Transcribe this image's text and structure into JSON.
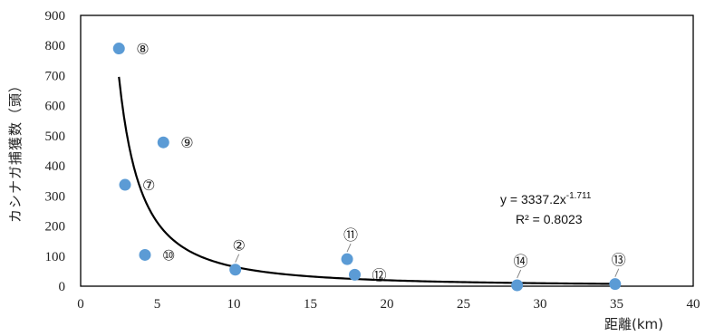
{
  "chart_data": {
    "type": "scatter",
    "xlabel": "距離(km)",
    "ylabel": "カシナガ捕獲数（頭）",
    "xlim": [
      0,
      40
    ],
    "ylim": [
      0,
      900
    ],
    "xticks": [
      "0",
      "5",
      "10",
      "15",
      "20",
      "25",
      "30",
      "35",
      "40"
    ],
    "yticks": [
      "0",
      "100",
      "200",
      "300",
      "400",
      "500",
      "600",
      "700",
      "800",
      "900"
    ],
    "points": [
      {
        "label": "⑧",
        "x": 2.5,
        "y": 790,
        "label_pos": "right"
      },
      {
        "label": "⑨",
        "x": 5.4,
        "y": 478,
        "label_pos": "right"
      },
      {
        "label": "⑦",
        "x": 2.9,
        "y": 337,
        "label_pos": "right"
      },
      {
        "label": "⑩",
        "x": 4.2,
        "y": 104,
        "label_pos": "right"
      },
      {
        "label": "②",
        "x": 10.1,
        "y": 55,
        "label_pos": "above"
      },
      {
        "label": "⑪",
        "x": 17.4,
        "y": 90,
        "label_pos": "above"
      },
      {
        "label": "⑫",
        "x": 17.9,
        "y": 38,
        "label_pos": "right"
      },
      {
        "label": "⑭",
        "x": 28.5,
        "y": 3,
        "label_pos": "above"
      },
      {
        "label": "⑬",
        "x": 34.9,
        "y": 7,
        "label_pos": "above"
      }
    ],
    "trendline": {
      "type": "power",
      "coefficient": 3337.2,
      "exponent": -1.711,
      "x_range": [
        2.5,
        35
      ],
      "equation_text": "y = 3337.2x",
      "equation_exponent": "-1.711",
      "r2_text": "R² = 0.8023"
    },
    "marker_color": "#5b9bd5",
    "line_color": "#000000",
    "grid": false,
    "legend": "none"
  }
}
